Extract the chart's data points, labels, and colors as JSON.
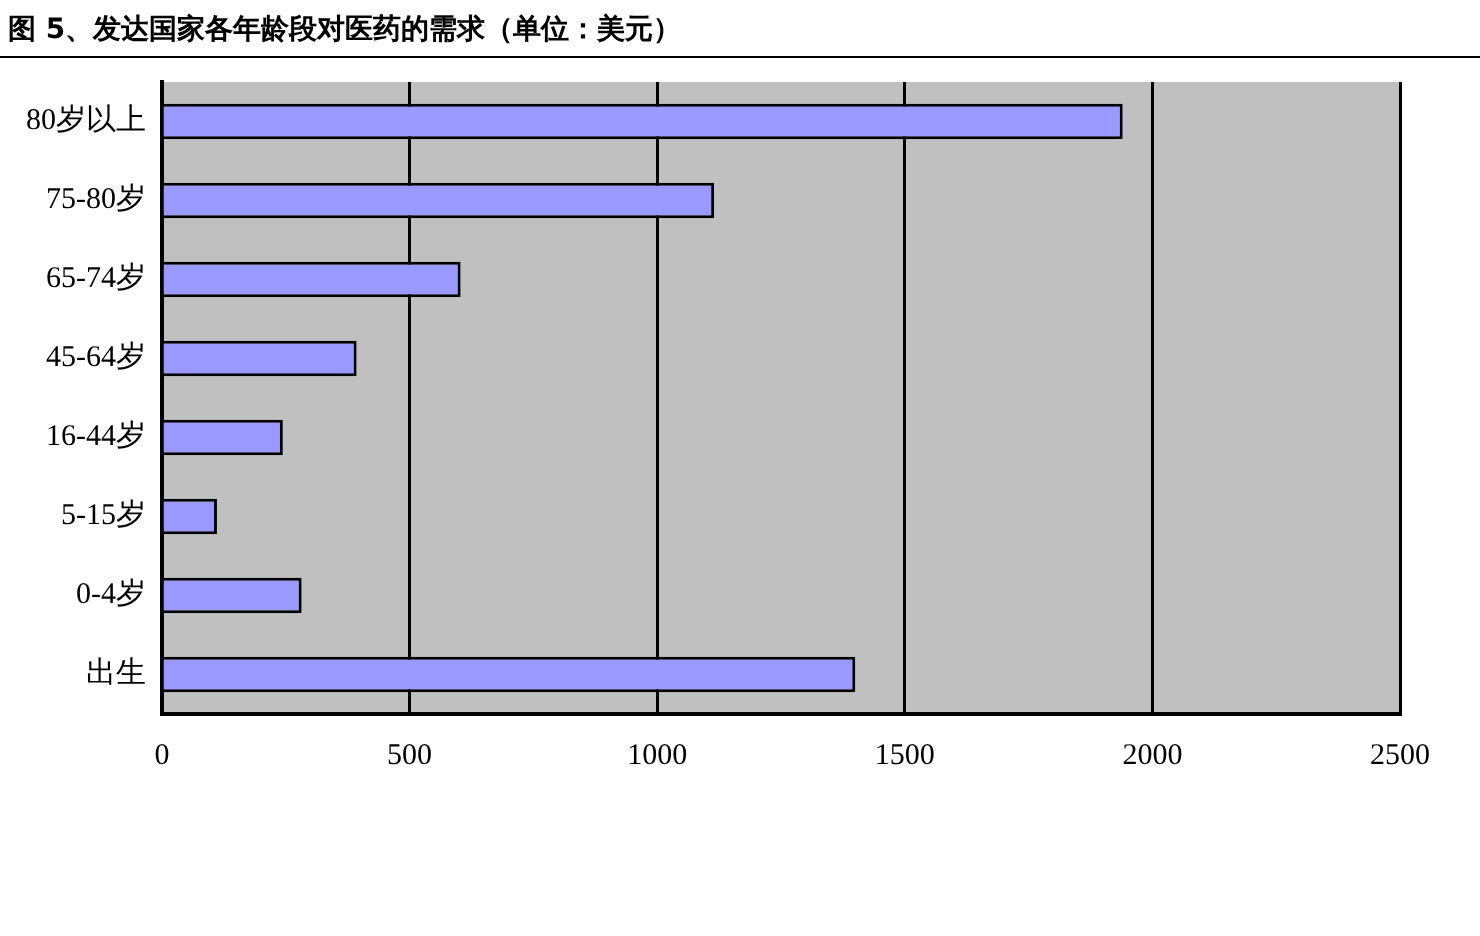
{
  "chart_data": {
    "type": "bar",
    "orientation": "horizontal",
    "title": "图 5、发达国家各年龄段对医药的需求（单位：美元）",
    "categories": [
      "80岁以上",
      "75-80岁",
      "65-74岁",
      "45-64岁",
      "16-44岁",
      "5-15岁",
      "0-4岁",
      "出生"
    ],
    "values": [
      1940,
      1115,
      603,
      393,
      244,
      111,
      282,
      1400
    ],
    "color": "#9999ff",
    "xlim": [
      0,
      2500
    ],
    "xticks": [
      0,
      500,
      1000,
      1500,
      2000,
      2500
    ],
    "grid": "x",
    "legend": false
  }
}
